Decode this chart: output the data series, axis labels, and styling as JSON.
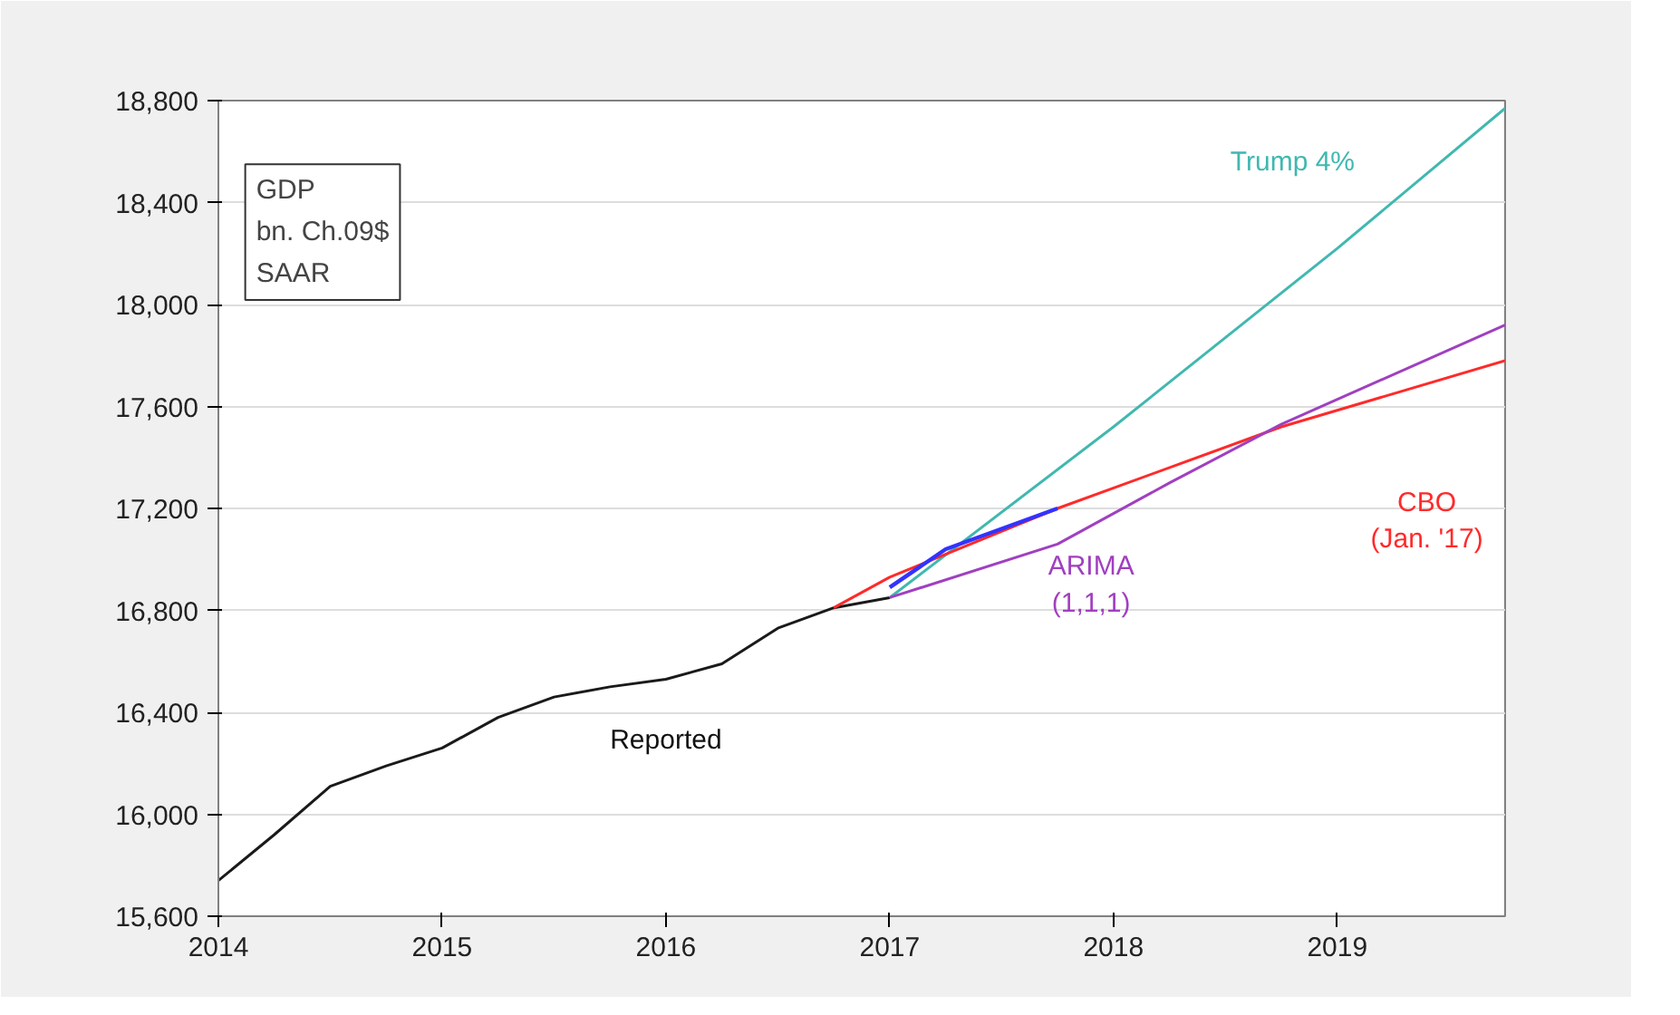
{
  "chart_data": {
    "type": "line",
    "xlim": [
      2014,
      2019.75
    ],
    "xticks": [
      2014,
      2015,
      2016,
      2017,
      2018,
      2019
    ],
    "ylim": [
      15600,
      18800
    ],
    "yticks": [
      {
        "value": 15600,
        "label": "15,600"
      },
      {
        "value": 16000,
        "label": "16,000"
      },
      {
        "value": 16400,
        "label": "16,400"
      },
      {
        "value": 16800,
        "label": "16,800"
      },
      {
        "value": 17200,
        "label": "17,200"
      },
      {
        "value": 17600,
        "label": "17,600"
      },
      {
        "value": 18000,
        "label": "18,000"
      },
      {
        "value": 18400,
        "label": "18,400"
      },
      {
        "value": 18800,
        "label": "18,800"
      }
    ],
    "grid": "y",
    "line_style": "solid",
    "marker": "none",
    "annotations": [
      "GDP\nbn. Ch.09$\nSAAR"
    ],
    "series": [
      {
        "name": "Reported",
        "color": "#1a1a1a",
        "x": [
          2014,
          2014.25,
          2014.5,
          2014.75,
          2015,
          2015.25,
          2015.5,
          2015.75,
          2016,
          2016.25,
          2016.5,
          2016.75,
          2017
        ],
        "values": [
          15740,
          15920,
          16110,
          16190,
          16260,
          16380,
          16460,
          16500,
          16530,
          16590,
          16730,
          16810,
          16850
        ]
      },
      {
        "name": "Trump 4%",
        "color": "#40b8b0",
        "x": [
          2017,
          2018,
          2019,
          2019.75
        ],
        "values": [
          16850,
          17520,
          18220,
          18770
        ]
      },
      {
        "name": "CBO\n(Jan. '17)",
        "color": "#ff2a2a",
        "x": [
          2016.75,
          2017,
          2017.75,
          2018.75,
          2019.75
        ],
        "values": [
          16810,
          16930,
          17200,
          17520,
          17780
        ]
      },
      {
        "name": "ARIMA\n(1,1,1)",
        "color": "#a040c0",
        "x": [
          2017,
          2017.75,
          2018.25,
          2018.75,
          2019.75
        ],
        "values": [
          16850,
          17060,
          17300,
          17530,
          17920
        ]
      },
      {
        "color": "#3333ff",
        "x": [
          2017,
          2017.25,
          2017.75
        ],
        "values": [
          16890,
          17040,
          17200
        ]
      }
    ]
  }
}
